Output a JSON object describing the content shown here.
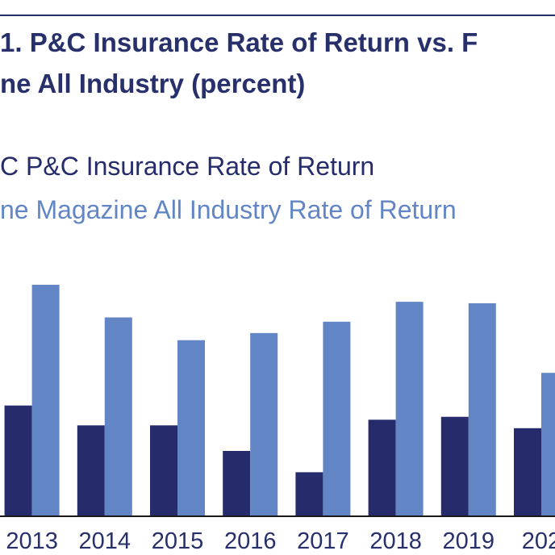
{
  "colors": {
    "series1": "#262c6b",
    "series2": "#6286c5",
    "text_dark": "#27306b",
    "axis": "#1a1a1a"
  },
  "chart_data": {
    "type": "bar",
    "title_line1": "1. P&C Insurance Rate of Return vs. F",
    "title_line2": "ne All Industry (percent)",
    "xlabel": "",
    "ylabel": "",
    "grid": false,
    "legend_placement": "top-left",
    "categories": [
      "2013",
      "2014",
      "2015",
      "2016",
      "2017",
      "2018",
      "2019",
      "202"
    ],
    "ylim": [
      0,
      16
    ],
    "series": [
      {
        "name": "C P&C Insurance Rate of Return",
        "color": "#262c6b",
        "values": [
          7.8,
          6.4,
          6.4,
          4.6,
          3.1,
          6.8,
          7.0,
          6.2
        ]
      },
      {
        "name": "ne Magazine All Industry Rate of Return",
        "color": "#6286c5",
        "values": [
          16.3,
          14.0,
          12.4,
          12.9,
          13.7,
          15.1,
          15.0,
          10.1
        ]
      }
    ]
  }
}
